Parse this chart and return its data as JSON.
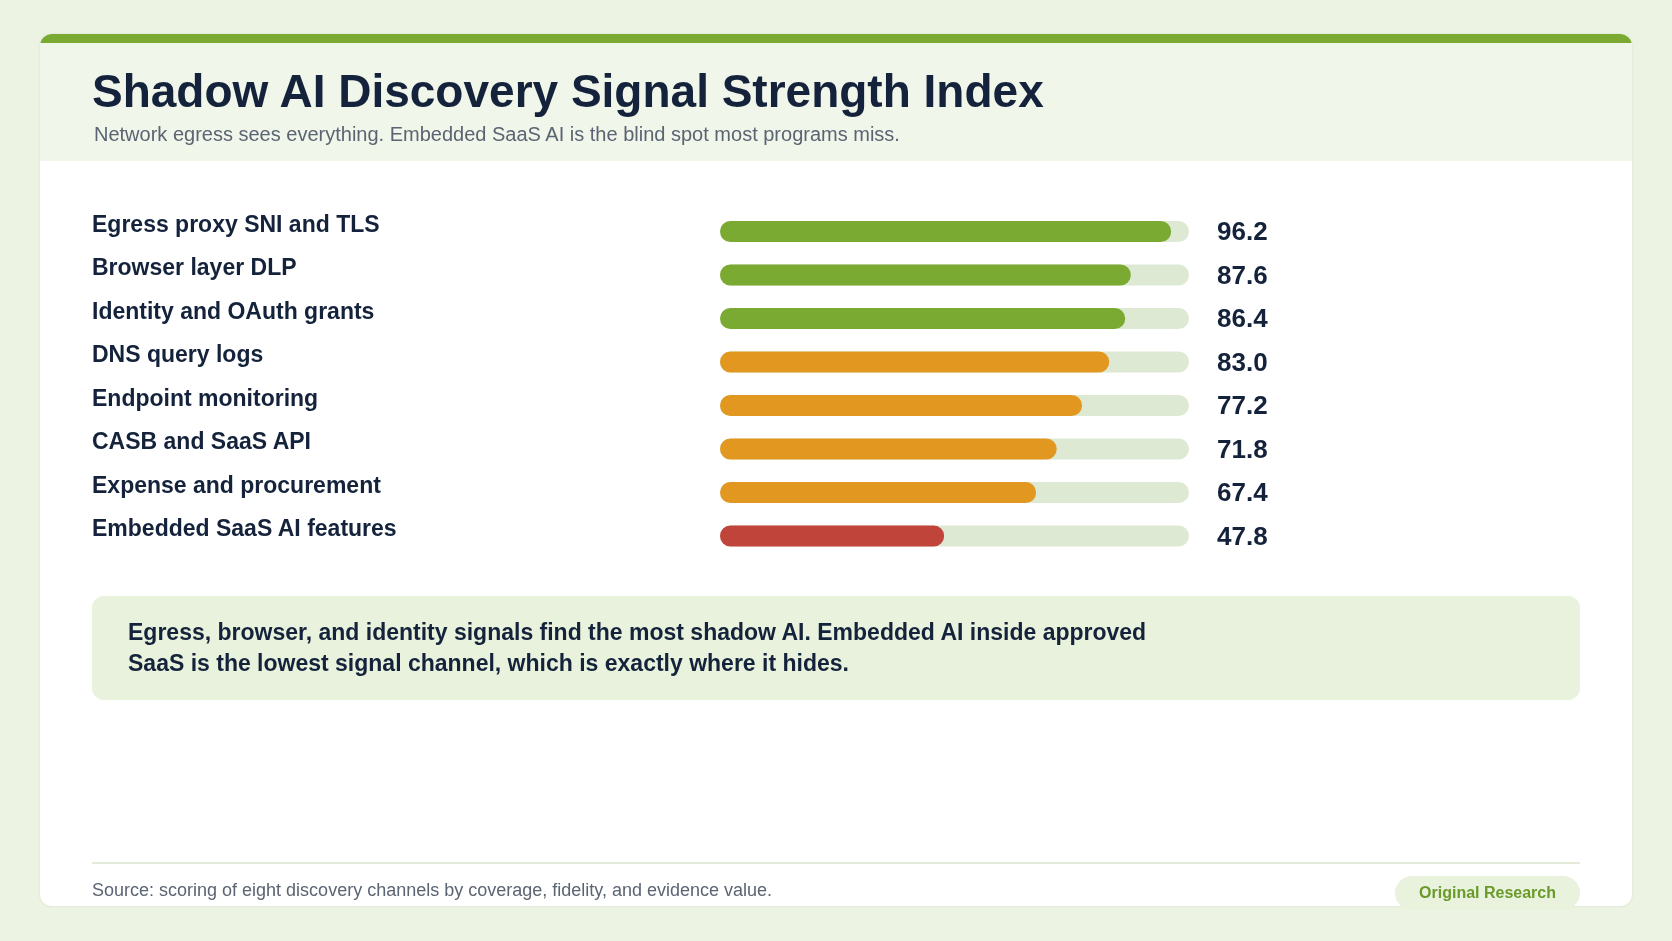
{
  "chart_data": {
    "type": "bar",
    "orientation": "horizontal",
    "title": "Shadow AI Discovery Signal Strength Index",
    "subtitle": "Network egress sees everything. Embedded SaaS AI is the blind spot most programs miss.",
    "categories": [
      "Egress proxy SNI and TLS",
      "Browser layer DLP",
      "Identity and OAuth grants",
      "DNS query logs",
      "Endpoint monitoring",
      "CASB and SaaS API",
      "Expense and procurement",
      "Embedded SaaS AI features"
    ],
    "values": [
      96.2,
      87.6,
      86.4,
      83.0,
      77.2,
      71.8,
      67.4,
      47.8
    ],
    "value_labels": [
      "96.2",
      "87.6",
      "86.4",
      "83.0",
      "77.2",
      "71.8",
      "67.4",
      "47.8"
    ],
    "colors": [
      "#7aaa32",
      "#7aaa32",
      "#7aaa32",
      "#e29820",
      "#e29820",
      "#e29820",
      "#e29820",
      "#c0443a"
    ],
    "xlim": [
      0,
      100
    ],
    "annotations": [
      "Egress, browser, and identity signals find the most shadow AI. Embedded AI inside approved SaaS is the lowest signal channel, which is exactly where it hides.",
      "Source: scoring of eight discovery channels by coverage, fidelity, and evidence value.",
      "Original Research"
    ]
  }
}
